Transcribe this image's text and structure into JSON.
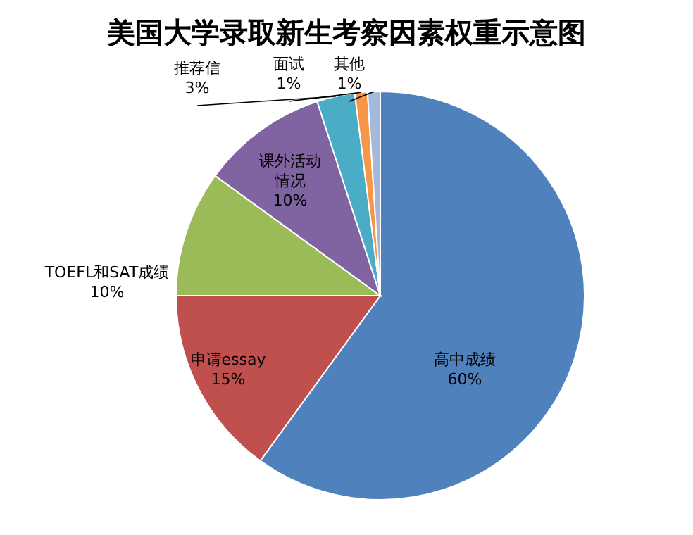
{
  "chart_data": {
    "type": "pie",
    "title": "美国大学录取新生考察因素权重示意图",
    "categories": [
      "高中成绩",
      "申请essay",
      "TOEFL和SAT成绩",
      "课外活动情况",
      "推荐信",
      "面试",
      "其他"
    ],
    "values": [
      60,
      15,
      10,
      10,
      3,
      1,
      1
    ],
    "colors": [
      "#4f81bd",
      "#c0504d",
      "#9bbb59",
      "#8064a2",
      "#4bacc6",
      "#f79646",
      "#a5b9dc"
    ],
    "value_labels": [
      "60%",
      "15%",
      "10%",
      "10%",
      "3%",
      "1%",
      "1%"
    ]
  }
}
